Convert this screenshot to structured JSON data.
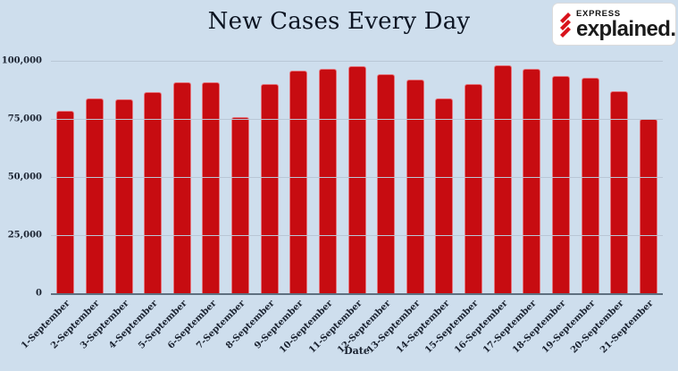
{
  "chart_data": {
    "type": "bar",
    "title": "New Cases Every Day",
    "xlabel": "Date",
    "ylabel": "",
    "categories": [
      "1-September",
      "2-September",
      "3-September",
      "4-September",
      "5-September",
      "6-September",
      "7-September",
      "8-September",
      "9-September",
      "10-September",
      "11-September",
      "12-September",
      "13-September",
      "14-September",
      "15-September",
      "16-September",
      "17-September",
      "18-September",
      "19-September",
      "20-September",
      "21-September"
    ],
    "values": [
      78357,
      83883,
      83341,
      86432,
      90632,
      90802,
      75809,
      89852,
      95735,
      96551,
      97570,
      94372,
      92071,
      83809,
      90123,
      97894,
      96424,
      93337,
      92605,
      86961,
      75083
    ],
    "ylim": [
      0,
      100000
    ],
    "yticks": [
      0,
      25000,
      50000,
      75000,
      100000
    ],
    "ytick_labels": [
      "0",
      "25,000",
      "50,000",
      "75,000",
      "100,000"
    ],
    "grid": true,
    "legend_position": "none",
    "colors": {
      "background": "#cedeed",
      "bar_fill": "#c70c11",
      "bar_edge": "#e4767e",
      "gridline": "#b9c7d6",
      "axis_line": "#5e7080",
      "text": "#1a2230"
    }
  },
  "logo": {
    "express_label": "EXPRESS",
    "explained_label": "explained",
    "dot": ".",
    "mark_icon": "indian-express-mark-icon",
    "colors": {
      "brand_red": "#d8131c",
      "box_background": "#ffffff"
    }
  }
}
